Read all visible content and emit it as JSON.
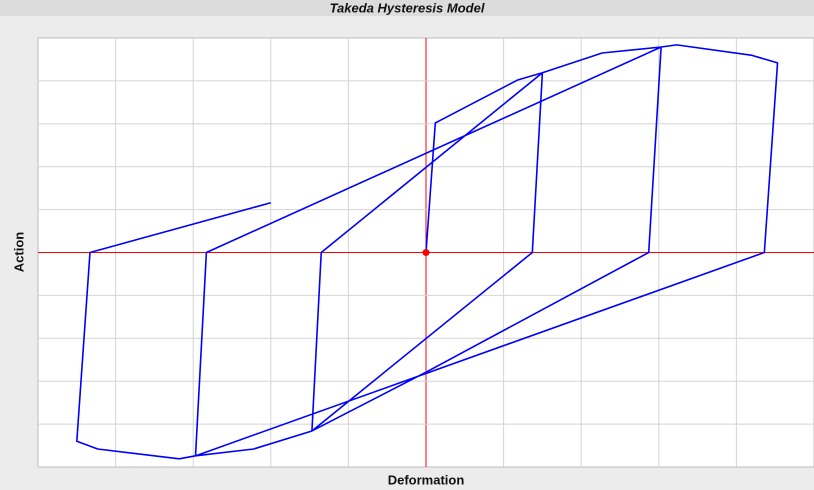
{
  "chart_data": {
    "type": "line",
    "title": "Takeda Hysteresis Model",
    "x_label": "Deformation",
    "y_label": "Action",
    "x": [
      0,
      0.12,
      1.18,
      1.5,
      1.37,
      -1.47,
      -1.35,
      1.5,
      2.27,
      3.03,
      2.87,
      0,
      -1.47,
      -2.22,
      -2.97,
      -2.83,
      3.03,
      3.23,
      4.19,
      4.53,
      4.36,
      -2.97,
      -3.18,
      -4.23,
      -4.5,
      -4.33,
      -2
    ],
    "series": [
      {
        "color": "#0000ff",
        "values": [
          0,
          3.02,
          4.02,
          4.19,
          0,
          -4.16,
          0,
          4.19,
          4.65,
          4.79,
          0,
          -2.79,
          -4.16,
          -4.58,
          -4.74,
          0,
          4.79,
          4.84,
          4.6,
          4.42,
          0,
          -4.74,
          -4.81,
          -4.58,
          -4.4,
          0,
          1.16
        ]
      }
    ],
    "xlim": [
      -5,
      5
    ],
    "ylim": [
      -5,
      5
    ],
    "xticks": [
      -4,
      -3,
      -2,
      -1,
      0,
      1,
      2,
      3,
      4
    ],
    "yticks": [
      -4,
      -3,
      -2,
      -1,
      0,
      1,
      2,
      3,
      4
    ],
    "grid": true,
    "axis_color": "#ff0000"
  }
}
